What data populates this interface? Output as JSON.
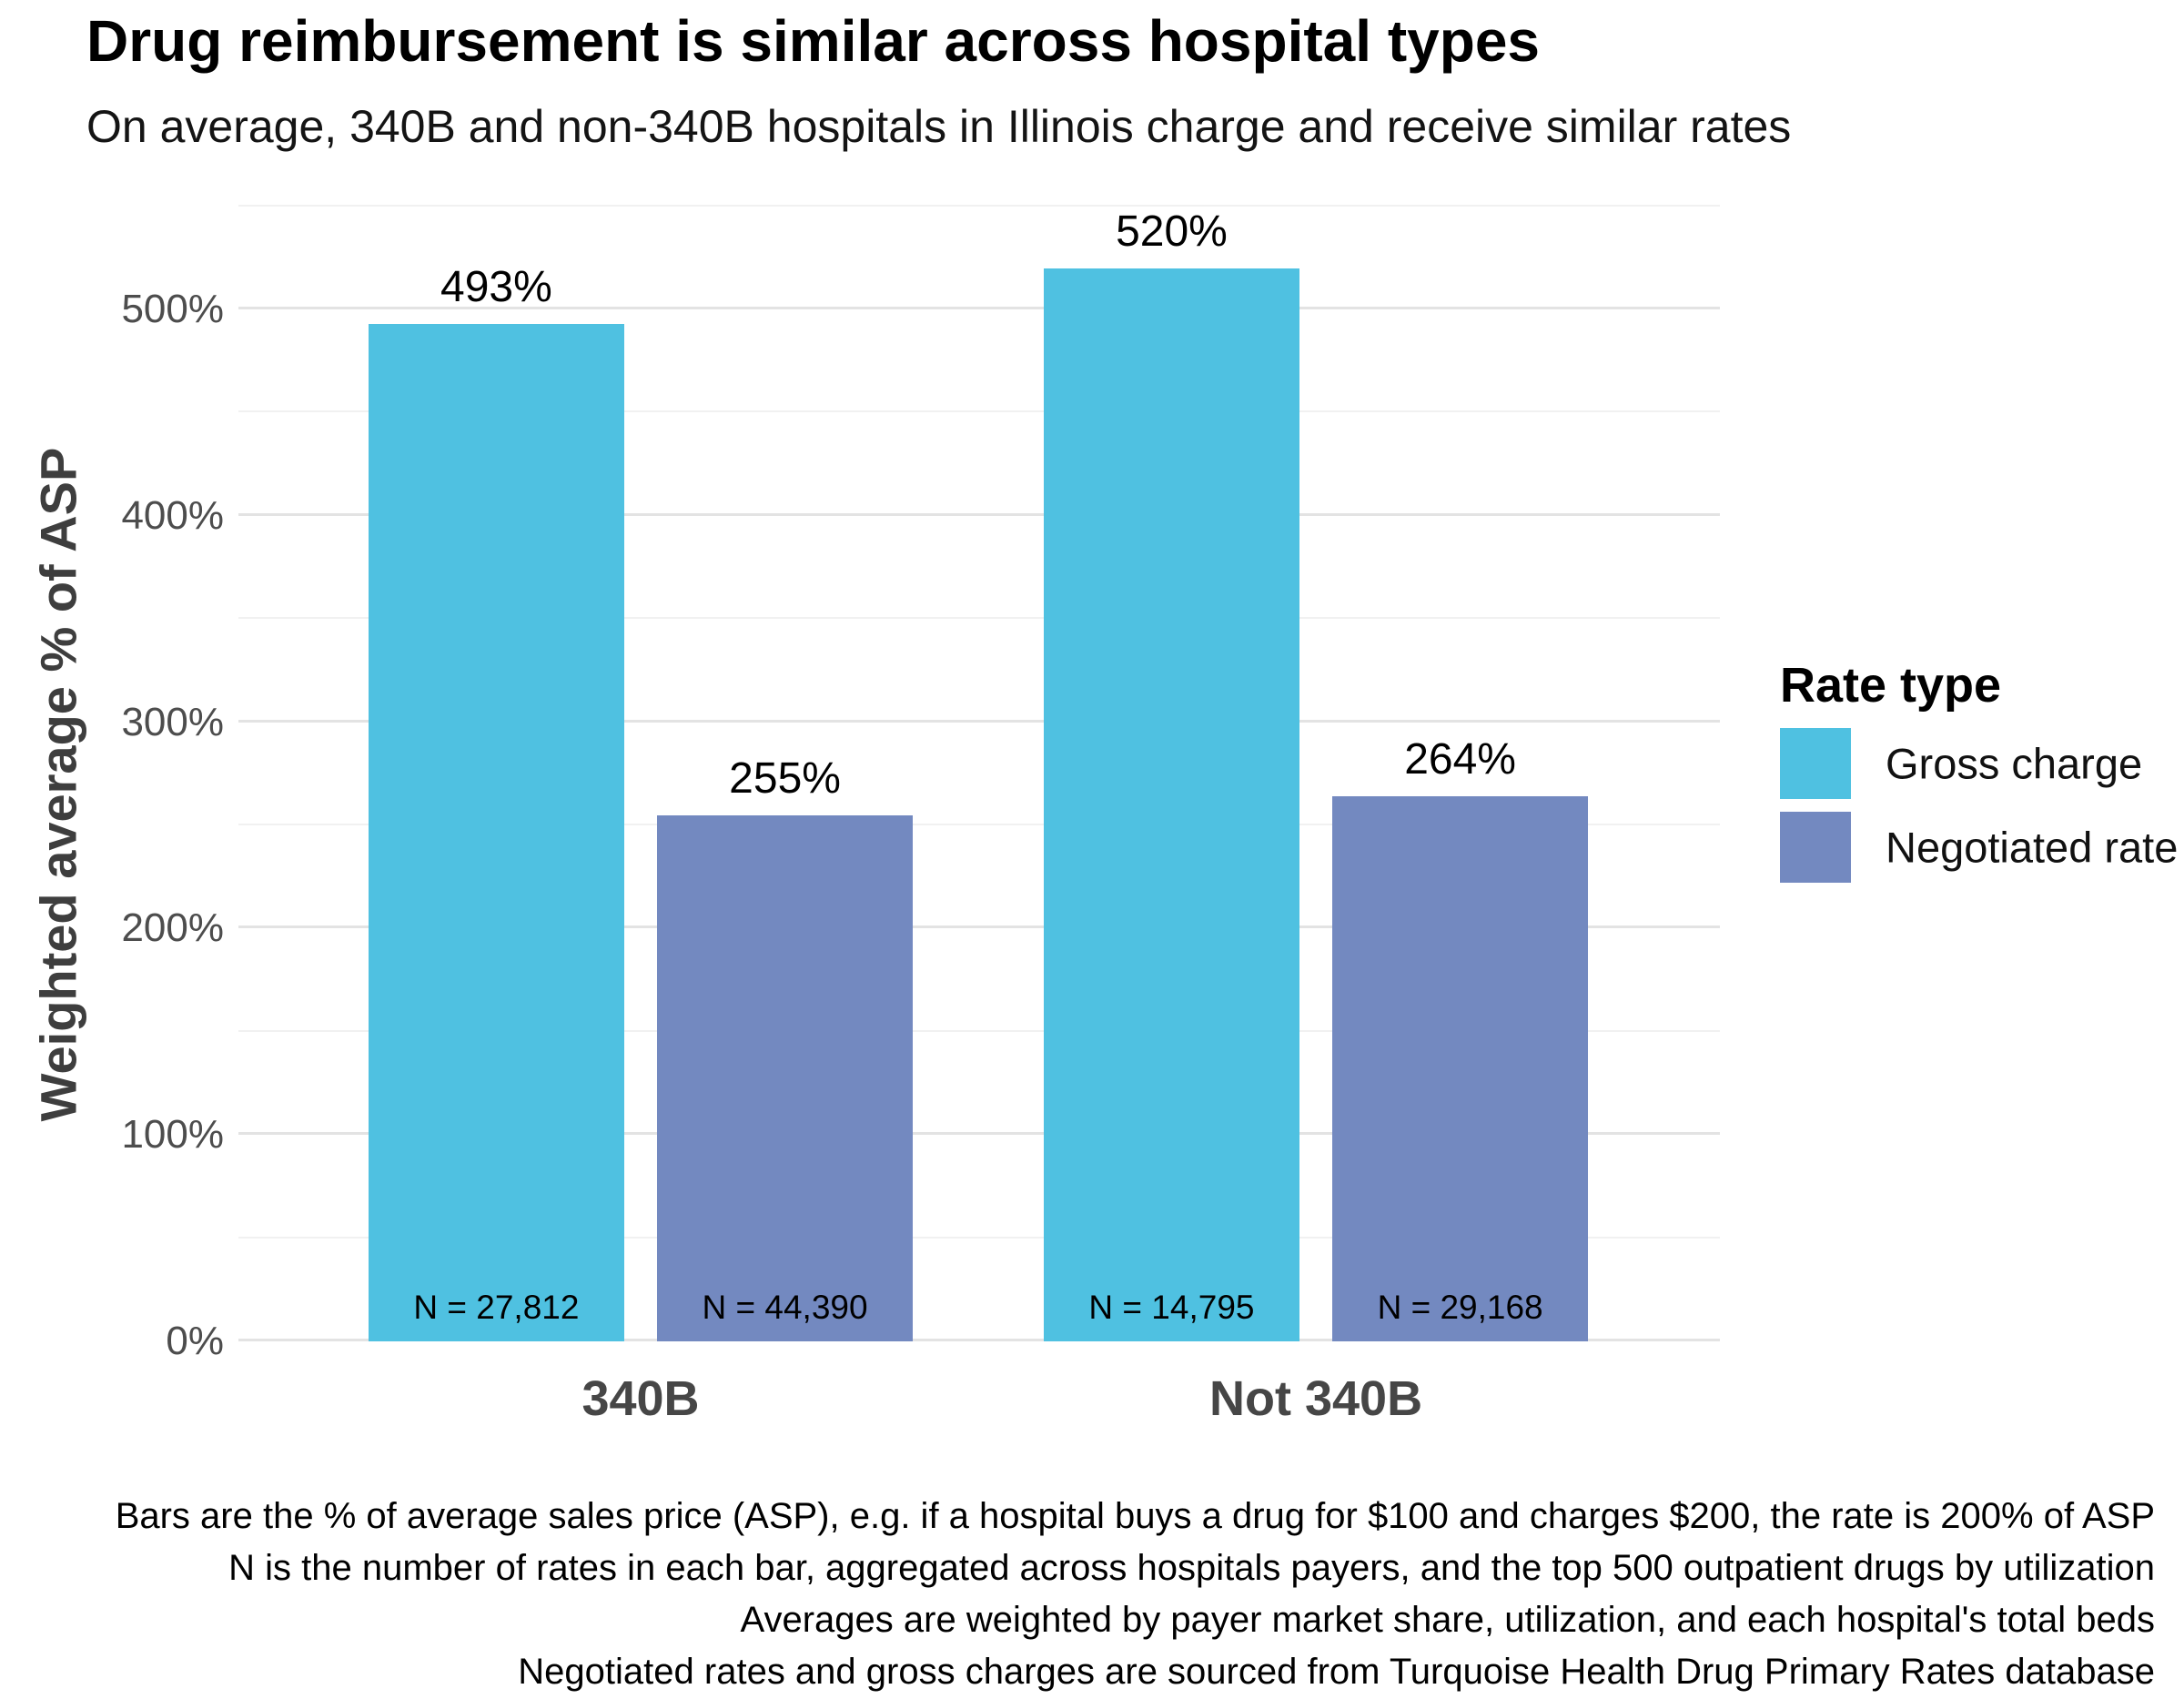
{
  "title": "Drug reimbursement is similar across hospital types",
  "subtitle": "On average, 340B and non-340B hospitals in Illinois charge and receive similar rates",
  "chart_data": {
    "type": "bar",
    "categories": [
      "340B",
      "Not 340B"
    ],
    "series": [
      {
        "name": "Gross charge",
        "color": "#4fc1e1",
        "values": [
          493,
          520
        ],
        "bar_labels": [
          "493%",
          "520%"
        ],
        "n_labels": [
          "N = 27,812",
          "N = 14,795"
        ]
      },
      {
        "name": "Negotiated rate",
        "color": "#7389c0",
        "values": [
          255,
          264
        ],
        "bar_labels": [
          "255%",
          "264%"
        ],
        "n_labels": [
          "N = 44,390",
          "N = 29,168"
        ]
      }
    ],
    "ylabel": "Weighted average % of ASP",
    "xlabel": "",
    "ylim": [
      0,
      575
    ],
    "yticks": [
      {
        "value": 0,
        "label": "0%"
      },
      {
        "value": 100,
        "label": "100%"
      },
      {
        "value": 200,
        "label": "200%"
      },
      {
        "value": 300,
        "label": "300%"
      },
      {
        "value": 400,
        "label": "400%"
      },
      {
        "value": 500,
        "label": "500%"
      }
    ],
    "minor_ticks": [
      50,
      150,
      250,
      350,
      450,
      550
    ],
    "grid": "horizontal",
    "legend_position": "right",
    "colors": {
      "grid_major": "#e3e3e3",
      "grid_minor": "#f1f1f1",
      "axis_text": "#4d4d4d",
      "axis_title": "#3e3e3e"
    }
  },
  "legend": {
    "title": "Rate type",
    "items": [
      {
        "label": "Gross charge",
        "color": "#4fc1e1"
      },
      {
        "label": "Negotiated rate",
        "color": "#7389c0"
      }
    ]
  },
  "caption": {
    "lines": [
      "Bars are the % of average sales price (ASP), e.g. if a hospital buys a drug for $100 and charges $200, the rate is 200% of ASP",
      "N is the number of rates in each bar, aggregated across hospitals payers, and the top 500 outpatient drugs by utilization",
      "Averages are weighted by payer market share, utilization, and each hospital's total beds",
      "Negotiated rates and gross charges are sourced from Turquoise Health Drug Primary Rates database"
    ]
  }
}
